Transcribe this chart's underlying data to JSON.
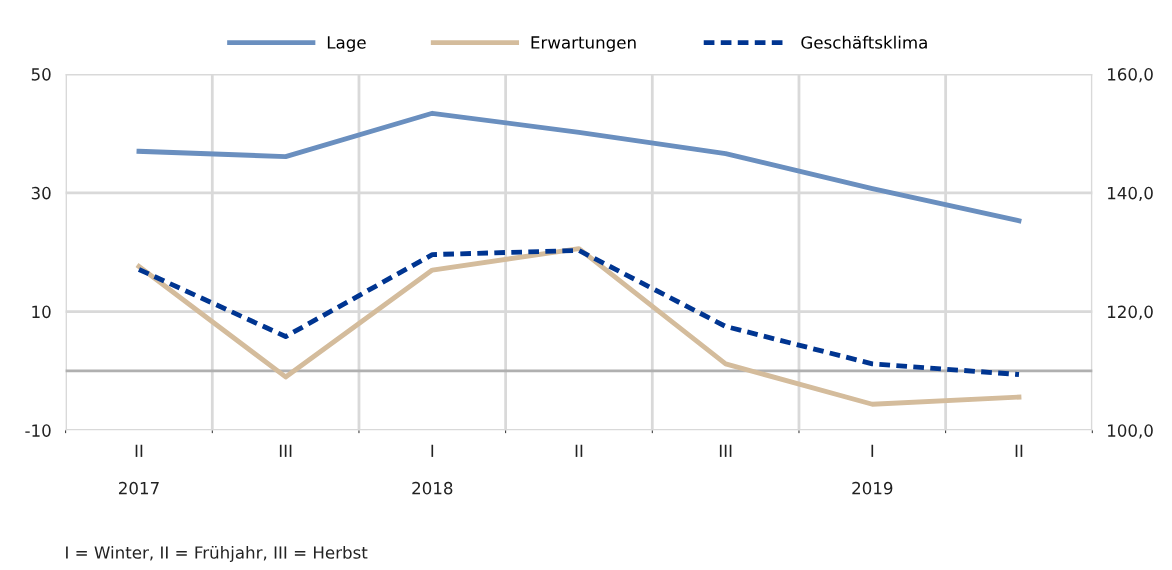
{
  "chart_data": {
    "type": "line",
    "categories": [
      "II\n\n2017",
      "III",
      "I\n\n2018",
      "II",
      "III",
      "I\n\n2019",
      "II"
    ],
    "series": [
      {
        "name": "Lage",
        "color": "#6a8fbf",
        "values": [
          37.0,
          36.1,
          43.4,
          40.2,
          36.6,
          30.7,
          25.3
        ],
        "line_style": "solid"
      },
      {
        "name": "Erwartungen",
        "color": "#d4bc9c",
        "values": [
          17.6,
          -1.0,
          17.0,
          20.6,
          1.2,
          -5.6,
          -4.4
        ],
        "line_style": "solid"
      },
      {
        "name": "Geschäftsklima",
        "color": "#003591",
        "values": [
          127.1,
          115.8,
          129.6,
          130.3,
          117.5,
          111.2,
          109.4
        ],
        "line_style": "dashed",
        "axis": "y2"
      }
    ],
    "ylim": [
      -10,
      50
    ],
    "yticks": [
      -10,
      10,
      30,
      50
    ],
    "y2lim": [
      100,
      160
    ],
    "y2ticks": [
      {
        "value": 100,
        "label": "100,0"
      },
      {
        "value": 120,
        "label": "120,0"
      },
      {
        "value": 140,
        "label": "140,0"
      },
      {
        "value": 160,
        "label": "160,0"
      }
    ],
    "ref_lines": [
      {
        "axis": "y",
        "value": 0,
        "color": "#b0b0b0"
      }
    ],
    "grid": true,
    "legend": "top",
    "marker": "none",
    "annotations": [
      "I = Winter, II = Frühjahr, III = Herbst"
    ]
  }
}
